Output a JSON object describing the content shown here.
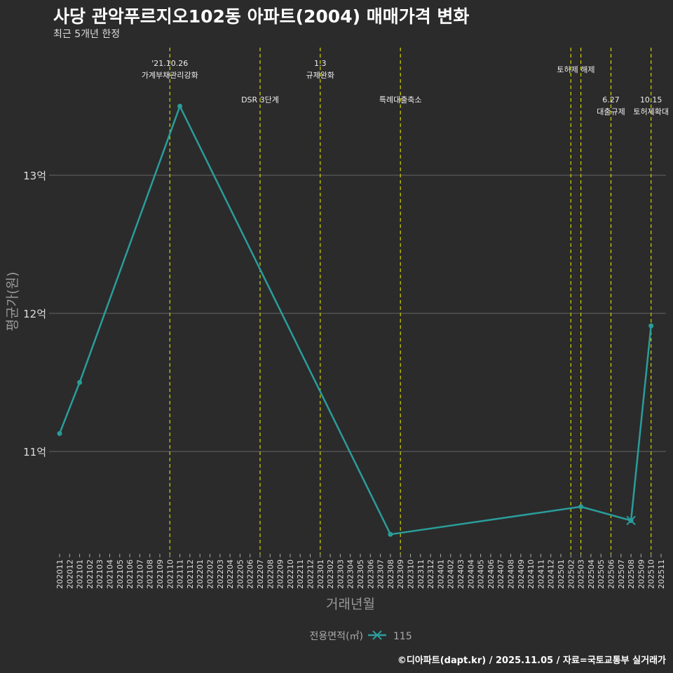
{
  "title": "사당 관악푸르지오102동 아파트(2004) 매매가격 변화",
  "subtitle": "최근 5개년 한정",
  "caption": "©디아파트(dapt.kr) / 2025.11.05 / 자료=국토교통부 실거래가",
  "colors": {
    "line": "#2a9d9b",
    "event": "#d4d400",
    "grid": "#666666",
    "bg": "#2b2b2b"
  },
  "chart_data": {
    "type": "line",
    "xlabel": "거래년월",
    "ylabel": "평균가(원)",
    "yticks": [
      {
        "v": 11,
        "label": "11억"
      },
      {
        "v": 12,
        "label": "12억"
      },
      {
        "v": 13,
        "label": "13억"
      }
    ],
    "ylim": [
      10.25,
      13.9
    ],
    "categories": [
      "202011",
      "202012",
      "202101",
      "202102",
      "202103",
      "202104",
      "202105",
      "202106",
      "202107",
      "202108",
      "202109",
      "202110",
      "202111",
      "202112",
      "202201",
      "202202",
      "202203",
      "202204",
      "202205",
      "202206",
      "202207",
      "202208",
      "202209",
      "202210",
      "202211",
      "202212",
      "202301",
      "202302",
      "202303",
      "202304",
      "202305",
      "202306",
      "202307",
      "202308",
      "202309",
      "202310",
      "202311",
      "202312",
      "202401",
      "202402",
      "202403",
      "202404",
      "202405",
      "202406",
      "202407",
      "202408",
      "202409",
      "202410",
      "202411",
      "202412",
      "202501",
      "202502",
      "202503",
      "202504",
      "202505",
      "202506",
      "202507",
      "202508",
      "202509",
      "202510",
      "202511"
    ],
    "series": [
      {
        "name": "115",
        "points": [
          {
            "x": "202011",
            "y": 11.13
          },
          {
            "x": "202101",
            "y": 11.5
          },
          {
            "x": "202111",
            "y": 13.5
          },
          {
            "x": "202308",
            "y": 10.4
          },
          {
            "x": "202503",
            "y": 10.6
          },
          {
            "x": "202508",
            "y": 10.5
          },
          {
            "x": "202510",
            "y": 11.91
          }
        ]
      }
    ],
    "legend": {
      "title": "전용면적(㎡)",
      "position": "bottom"
    },
    "events": [
      {
        "x": "202110",
        "lines": [
          "'21.10.26",
          "가계부채관리강화"
        ],
        "row": "top"
      },
      {
        "x": "202207",
        "lines": [
          "DSR 3단계"
        ],
        "row": "low"
      },
      {
        "x": "202301",
        "lines": [
          "1.3",
          "규제완화"
        ],
        "row": "top"
      },
      {
        "x": "202309",
        "lines": [
          "특례대출축소"
        ],
        "row": "low"
      },
      {
        "x": "202502",
        "lines": [],
        "row": "none"
      },
      {
        "x": "202503",
        "lines": [
          "토허제 해제"
        ],
        "row": "mid"
      },
      {
        "x": "202506",
        "lines": [
          "6.27",
          "대출규제"
        ],
        "row": "low"
      },
      {
        "x": "202510",
        "lines": [
          "10.15",
          "토허제확대"
        ],
        "row": "low"
      }
    ]
  }
}
